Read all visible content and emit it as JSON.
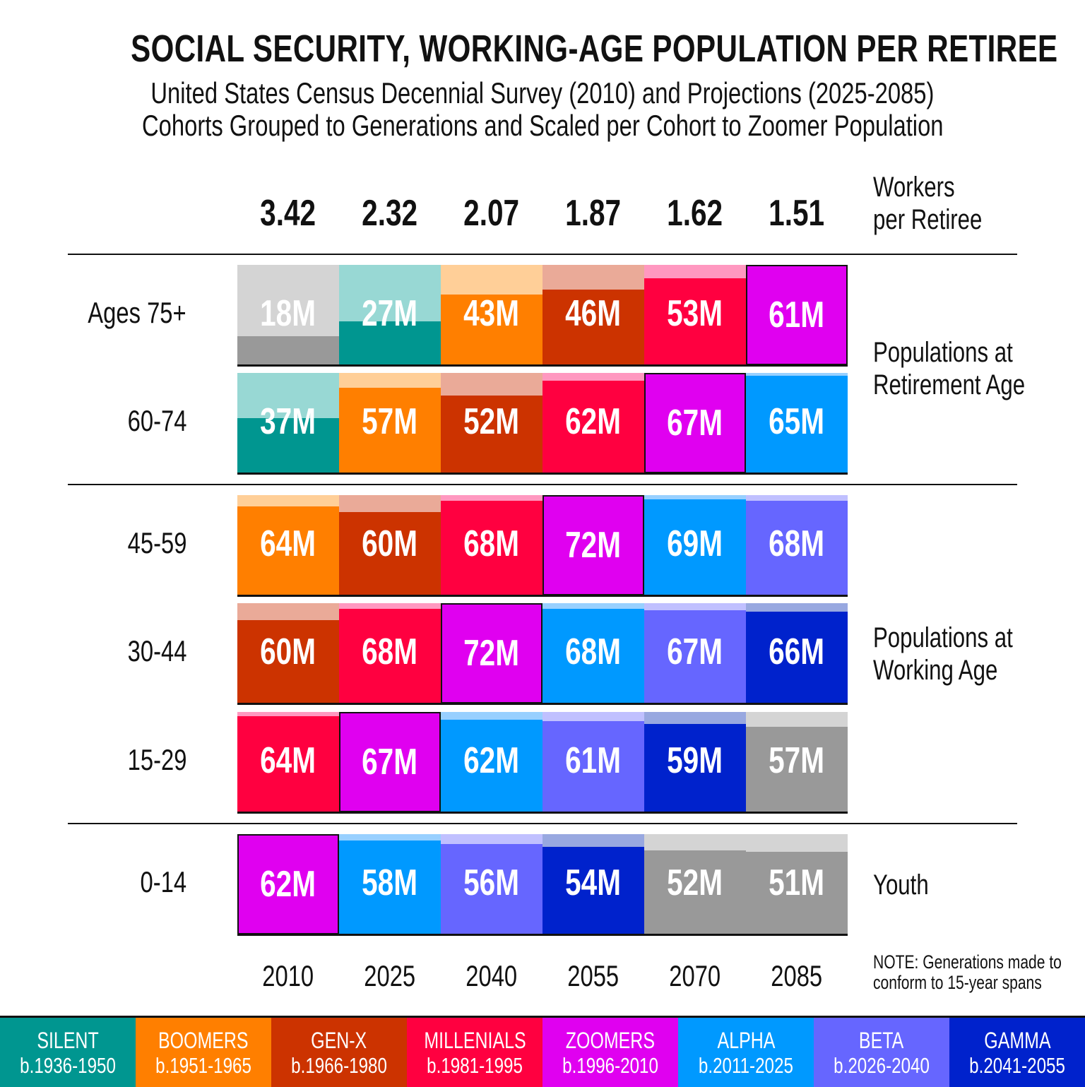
{
  "title": "SOCIAL SECURITY, WORKING-AGE POPULATION PER RETIREE",
  "subtitle1": "United States Census  Decennial Survey (2010) and Projections (2025-2085)",
  "subtitle2": "Cohorts Grouped to Generations and Scaled per Cohort to Zoomer Population",
  "ratio_heading_line1": "Workers",
  "ratio_heading_line2": "per Retiree",
  "retirement_label_line1": "Populations at",
  "retirement_label_line2": "Retirement Age",
  "working_label_line1": "Populations at",
  "working_label_line2": "Working Age",
  "youth_label": "Youth",
  "note_line1": "NOTE: Generations made to",
  "note_line2": "conform to 15-year spans",
  "ratios": [
    "3.42",
    "2.32",
    "2.07",
    "1.87",
    "1.62",
    "1.51"
  ],
  "years": [
    "2010",
    "2025",
    "2040",
    "2055",
    "2070",
    "2085"
  ],
  "generations": [
    {
      "name": "SILENT",
      "years": "b.1936-1950",
      "color": "#009690",
      "light": "#98d8d4"
    },
    {
      "name": "BOOMERS",
      "years": "b.1951-1965",
      "color": "#ff7f00",
      "light": "#ffcf98"
    },
    {
      "name": "GEN-X",
      "years": "b.1966-1980",
      "color": "#cc3300",
      "light": "#eaaa98"
    },
    {
      "name": "MILLENIALS",
      "years": "b.1981-1995",
      "color": "#ff0040",
      "light": "#ff98c0"
    },
    {
      "name": "ZOOMERS",
      "years": "b.1996-2010",
      "color": "#e000f0",
      "light": "#f098f8"
    },
    {
      "name": "ALPHA",
      "years": "b.2011-2025",
      "color": "#0099ff",
      "light": "#98d0ff"
    },
    {
      "name": "BETA",
      "years": "b.2026-2040",
      "color": "#6666ff",
      "light": "#c0c0ff"
    },
    {
      "name": "GAMMA",
      "years": "b.2041-2055",
      "color": "#0022cc",
      "light": "#98a8e0"
    },
    {
      "name": "",
      "years": "",
      "color": "#999999",
      "light": "#d4d4d4"
    }
  ],
  "chart_data": {
    "type": "table",
    "title": "SOCIAL SECURITY, WORKING-AGE POPULATION PER RETIREE",
    "unit": "M",
    "columns": [
      "2010",
      "2025",
      "2040",
      "2055",
      "2070",
      "2085"
    ],
    "workers_per_retiree": [
      3.42,
      2.32,
      2.07,
      1.87,
      1.62,
      1.51
    ],
    "rows": [
      {
        "label": "Ages 75+",
        "values": [
          18,
          27,
          43,
          46,
          53,
          61
        ],
        "generation_index": [
          -1,
          0,
          1,
          2,
          3,
          4
        ],
        "max_value": [
          61,
          61,
          61,
          61,
          61,
          61
        ]
      },
      {
        "label": "60-74",
        "values": [
          37,
          57,
          52,
          62,
          67,
          65
        ],
        "generation_index": [
          0,
          1,
          2,
          3,
          4,
          5
        ],
        "max_value": [
          67,
          67,
          67,
          67,
          67,
          67
        ]
      },
      {
        "label": "45-59",
        "values": [
          64,
          60,
          68,
          72,
          69,
          68
        ],
        "generation_index": [
          1,
          2,
          3,
          4,
          5,
          6
        ],
        "max_value": [
          72,
          72,
          72,
          72,
          72,
          72
        ]
      },
      {
        "label": "30-44",
        "values": [
          60,
          68,
          72,
          68,
          67,
          66
        ],
        "generation_index": [
          2,
          3,
          4,
          5,
          6,
          7
        ],
        "max_value": [
          72,
          72,
          72,
          72,
          72,
          72
        ]
      },
      {
        "label": "15-29",
        "values": [
          64,
          67,
          62,
          61,
          59,
          57
        ],
        "generation_index": [
          3,
          4,
          5,
          6,
          7,
          8
        ],
        "max_value": [
          67,
          67,
          67,
          67,
          67,
          67
        ]
      },
      {
        "label": "0-14",
        "values": [
          62,
          58,
          56,
          54,
          52,
          51
        ],
        "generation_index": [
          4,
          5,
          6,
          7,
          8,
          8
        ],
        "max_value": [
          62,
          62,
          62,
          62,
          62,
          62
        ]
      }
    ]
  }
}
